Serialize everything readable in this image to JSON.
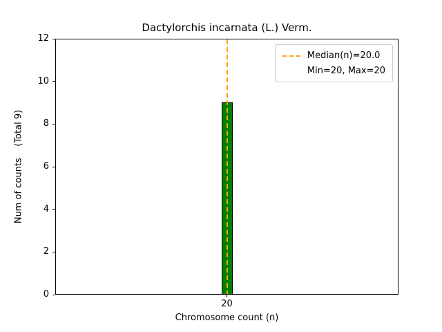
{
  "chart_data": {
    "type": "bar",
    "title": "Dactylorchis incarnata (L.) Verm.",
    "xlabel": "Chromosome count (n)",
    "ylabel": "Num of counts    (Total 9)",
    "categories": [
      20
    ],
    "values": [
      9
    ],
    "total_counts": 9,
    "ylim": [
      0,
      12
    ],
    "yticks": [
      0,
      2,
      4,
      6,
      8,
      10,
      12
    ],
    "xticks": [
      20
    ],
    "grid": false,
    "bar_color": "#008000",
    "bar_edge_color": "#000000",
    "median_line": {
      "x": 20,
      "value_label": "20.0",
      "color": "#FFA500",
      "style": "dashed"
    },
    "legend": {
      "position": "upper right",
      "entries": [
        {
          "handle": "orange-dashed-line",
          "label": "Median(n)=20.0"
        },
        {
          "handle": "none",
          "label": "Min=20, Max=20"
        }
      ]
    }
  }
}
